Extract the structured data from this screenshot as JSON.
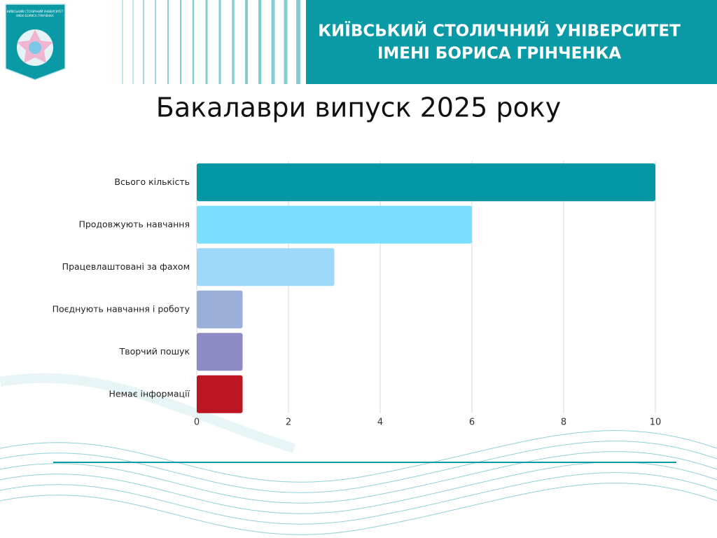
{
  "header": {
    "university": [
      "КИЇВСЬКИЙ СТОЛИЧНИЙ УНІВЕРСИТЕТ",
      "ІМЕНІ БОРИСА ГРІНЧЕНКА"
    ],
    "logo_text": [
      "КИЇВСЬКИЙ СТОЛИЧНИЙ УНІВЕРСИТЕТ",
      "ІМЕНІ БОРИСА ГРІНЧЕНКА"
    ]
  },
  "chart_data": {
    "type": "bar",
    "orientation": "horizontal",
    "title": "Бакалаври випуск 2025 року",
    "categories": [
      "Всього кількість",
      "Продовжують навчання",
      "Працевлаштовані за фахом",
      "Поєднують навчання і роботу",
      "Творчий пошук",
      "Немає інформації"
    ],
    "values": [
      10,
      6,
      3,
      1,
      1,
      1
    ],
    "colors": [
      "#0396a3",
      "#7ddfff",
      "#9ed8fb",
      "#99afd9",
      "#8c8bc3",
      "#be1522"
    ],
    "xlim": [
      0,
      10
    ],
    "xticks": [
      0,
      2,
      4,
      6,
      8,
      10
    ],
    "grid": true
  }
}
